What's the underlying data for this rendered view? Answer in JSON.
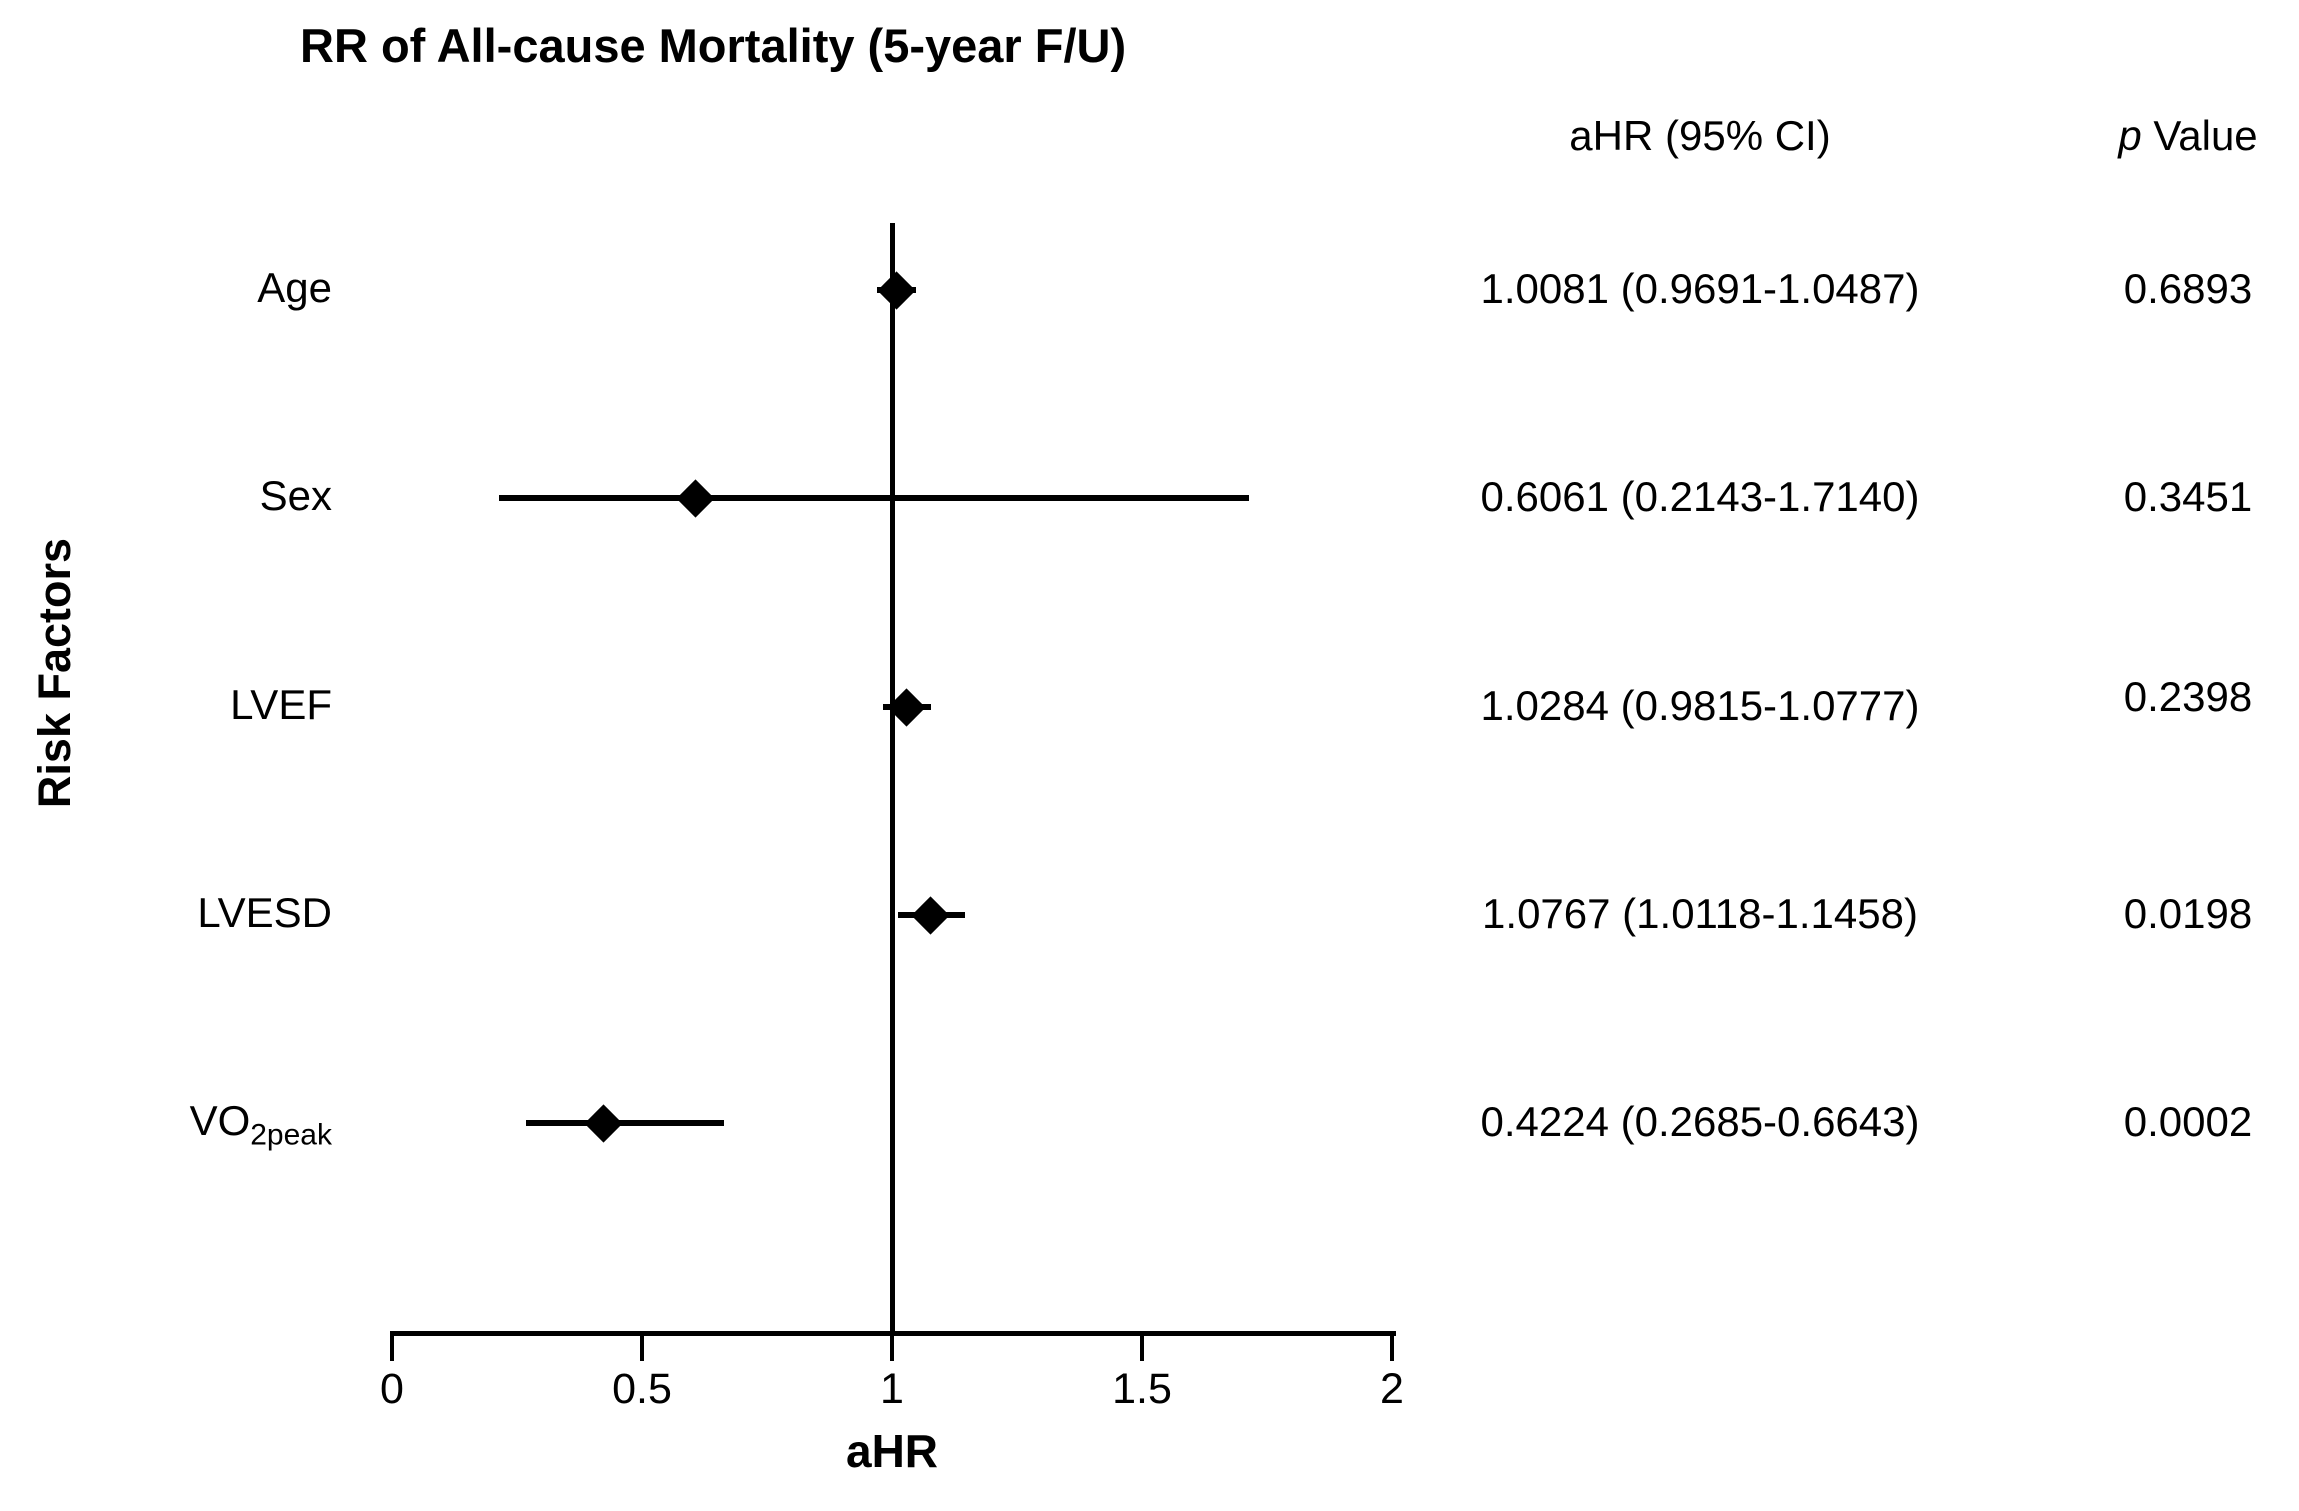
{
  "title": "RR of All-cause Mortality (5-year F/U)",
  "table": {
    "ahr_header": "aHR (95% CI)",
    "p_header_prefix": "p",
    "p_header_suffix": " Value"
  },
  "chart_data": {
    "type": "scatter",
    "subtype": "forest-plot",
    "title": "RR of All-cause Mortality (5-year F/U)",
    "xlabel": "aHR",
    "ylabel": "Risk Factors",
    "xlim": [
      0,
      2
    ],
    "xticks": [
      "0",
      "0.5",
      "1",
      "1.5",
      "2"
    ],
    "reference_line_x": 1,
    "marker_shape": "filled-diamond",
    "marker_color": "#000000",
    "grid": false,
    "rows": [
      {
        "label": "Age",
        "label_sub": "",
        "ahr": 1.0081,
        "ci_low": 0.9691,
        "ci_high": 1.0487,
        "ahr_ci_text": "1.0081 (0.9691-1.0487)",
        "p_value": "0.6893"
      },
      {
        "label": "Sex",
        "label_sub": "",
        "ahr": 0.6061,
        "ci_low": 0.2143,
        "ci_high": 1.714,
        "ahr_ci_text": "0.6061 (0.2143-1.7140)",
        "p_value": "0.3451"
      },
      {
        "label": "LVEF",
        "label_sub": "",
        "ahr": 1.0284,
        "ci_low": 0.9815,
        "ci_high": 1.0777,
        "ahr_ci_text": "1.0284 (0.9815-1.0777)",
        "p_value": "0.2398"
      },
      {
        "label": "LVESD",
        "label_sub": "",
        "ahr": 1.0767,
        "ci_low": 1.0118,
        "ci_high": 1.1458,
        "ahr_ci_text": "1.0767 (1.0118-1.1458)",
        "p_value": "0.0198"
      },
      {
        "label": "VO",
        "label_sub": "2peak",
        "ahr": 0.4224,
        "ci_low": 0.2685,
        "ci_high": 0.6643,
        "ahr_ci_text": "0.4224 (0.2685-0.6643)",
        "p_value": "0.0002"
      }
    ]
  }
}
